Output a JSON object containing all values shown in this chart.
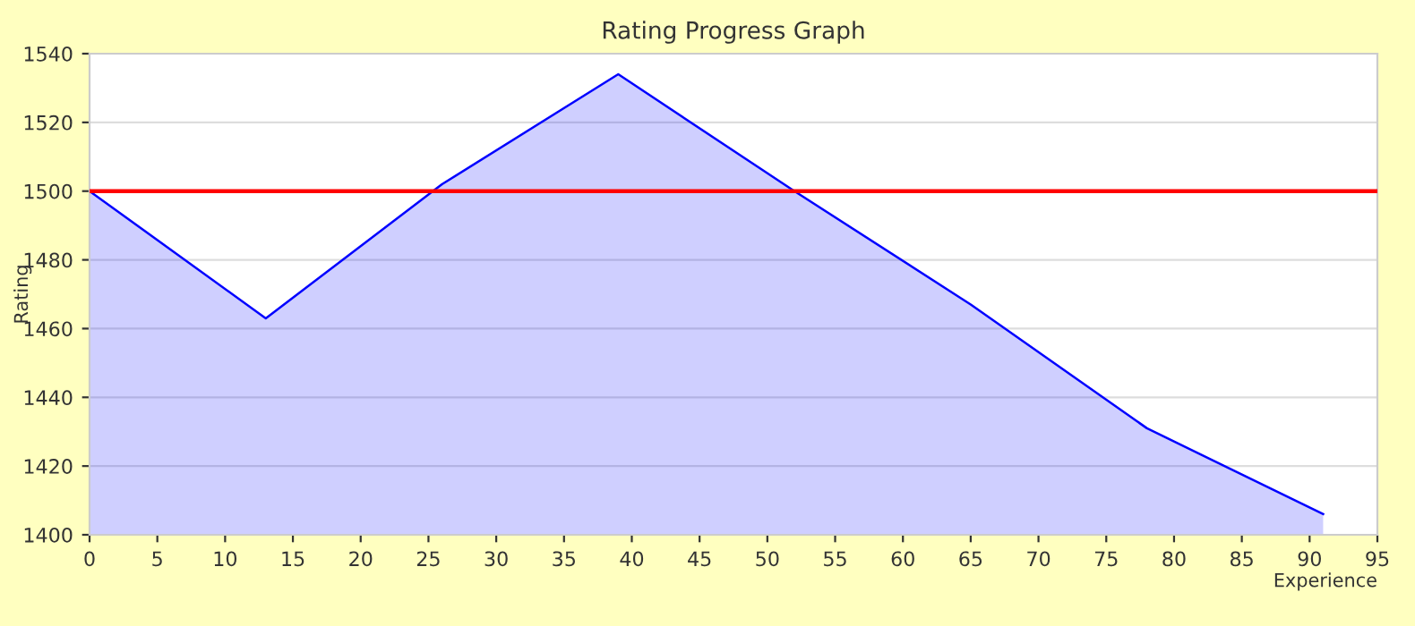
{
  "chart_data": {
    "type": "area",
    "title": "Rating Progress Graph",
    "xlabel": "Experience",
    "ylabel": "Rating",
    "x": [
      0,
      13,
      26,
      39,
      52,
      65,
      78,
      91
    ],
    "series": [
      {
        "color": "#0000ff",
        "values": [
          1500,
          1463,
          1502,
          1534,
          1500,
          1467,
          1431,
          1406
        ]
      }
    ],
    "xlim": [
      0,
      95
    ],
    "xticks": [
      0,
      5,
      10,
      15,
      20,
      25,
      30,
      35,
      40,
      45,
      50,
      55,
      60,
      65,
      70,
      75,
      80,
      85,
      90,
      95
    ],
    "ylim": [
      1400,
      1540
    ],
    "yticks": [
      1400,
      1420,
      1440,
      1460,
      1480,
      1500,
      1520,
      1540
    ],
    "ref_lines": [
      {
        "axis": "y",
        "value": 1500,
        "color": "#ff0000"
      }
    ],
    "grid": "y"
  }
}
